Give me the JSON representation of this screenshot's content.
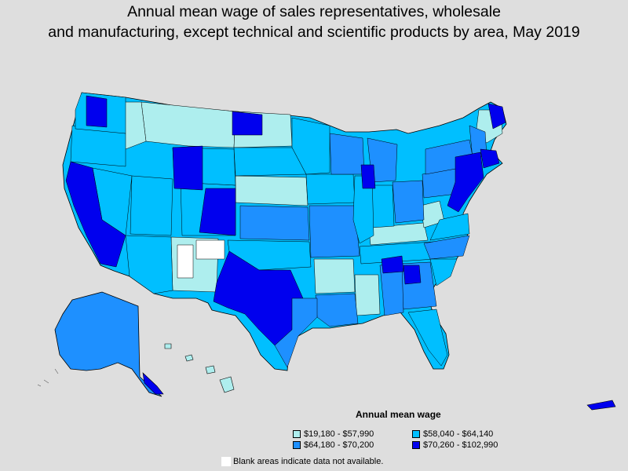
{
  "title": {
    "line1": "Annual mean wage of sales representatives, wholesale",
    "line2": "and manufacturing, except technical and scientific products by area, May 2019"
  },
  "legend": {
    "title": "Annual mean wage",
    "items": [
      {
        "label": "$19,180 - $57,990",
        "color": "#aeeeee"
      },
      {
        "label": "$58,040 - $64,140",
        "color": "#00bfff"
      },
      {
        "label": "$64,180 - $70,200",
        "color": "#1e90ff"
      },
      {
        "label": "$70,260 - $102,990",
        "color": "#0000ee"
      }
    ]
  },
  "note": "Blank areas indicate data not available.",
  "colors": {
    "background": "#dedede",
    "border": "#000000",
    "blank": "#ffffff"
  }
}
